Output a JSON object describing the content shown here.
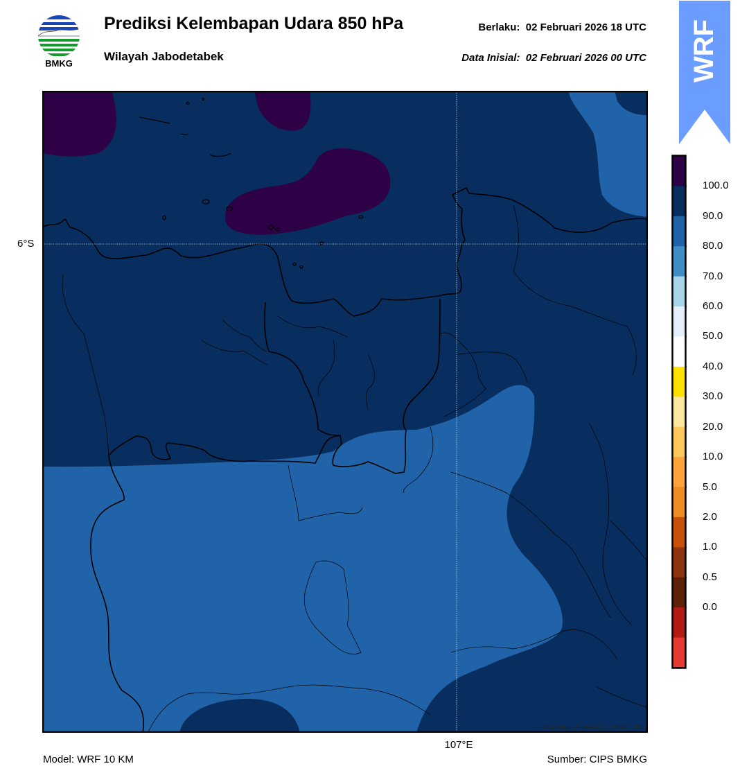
{
  "header": {
    "logo_text": "BMKG",
    "title": "Prediksi Kelembapan Udara 850 hPa",
    "subtitle": "Wilayah Jabodetabek",
    "valid_label": "Berlaku:",
    "valid_value": "02 Februari 2026 18 UTC",
    "init_label": "Data Inisial:",
    "init_value": "02 Februari 2026 00 UTC"
  },
  "ribbon": {
    "text": "WRF",
    "color": "#6b9cff"
  },
  "map": {
    "lat_label": "6°S",
    "lon_label": "107°E",
    "copyright": "©Sub Bidang Prediksi Cuaca BMKG, 2020"
  },
  "footer": {
    "model": "Model: WRF 10 KM",
    "source": "Sumber: CIPS BMKG"
  },
  "colorbar": {
    "labels": [
      "100.0",
      "90.0",
      "80.0",
      "70.0",
      "60.0",
      "50.0",
      "40.0",
      "30.0",
      "20.0",
      "10.0",
      "5.0",
      "2.0",
      "1.0",
      "0.5",
      "0.0"
    ],
    "colors": [
      "#2e0045",
      "#072e5e",
      "#2163a8",
      "#3f8fc4",
      "#a9d5ea",
      "#e4effa",
      "#ffffff",
      "#ffe100",
      "#ffe7a0",
      "#ffc75c",
      "#ffa43a",
      "#ee8b23",
      "#c9500a",
      "#8e3410",
      "#5e2109",
      "#b21a14",
      "#e73a32"
    ],
    "humidity_colors": {
      "above_100": "#2e0045",
      "90_100": "#072e5e",
      "80_90": "#2163a8"
    }
  }
}
